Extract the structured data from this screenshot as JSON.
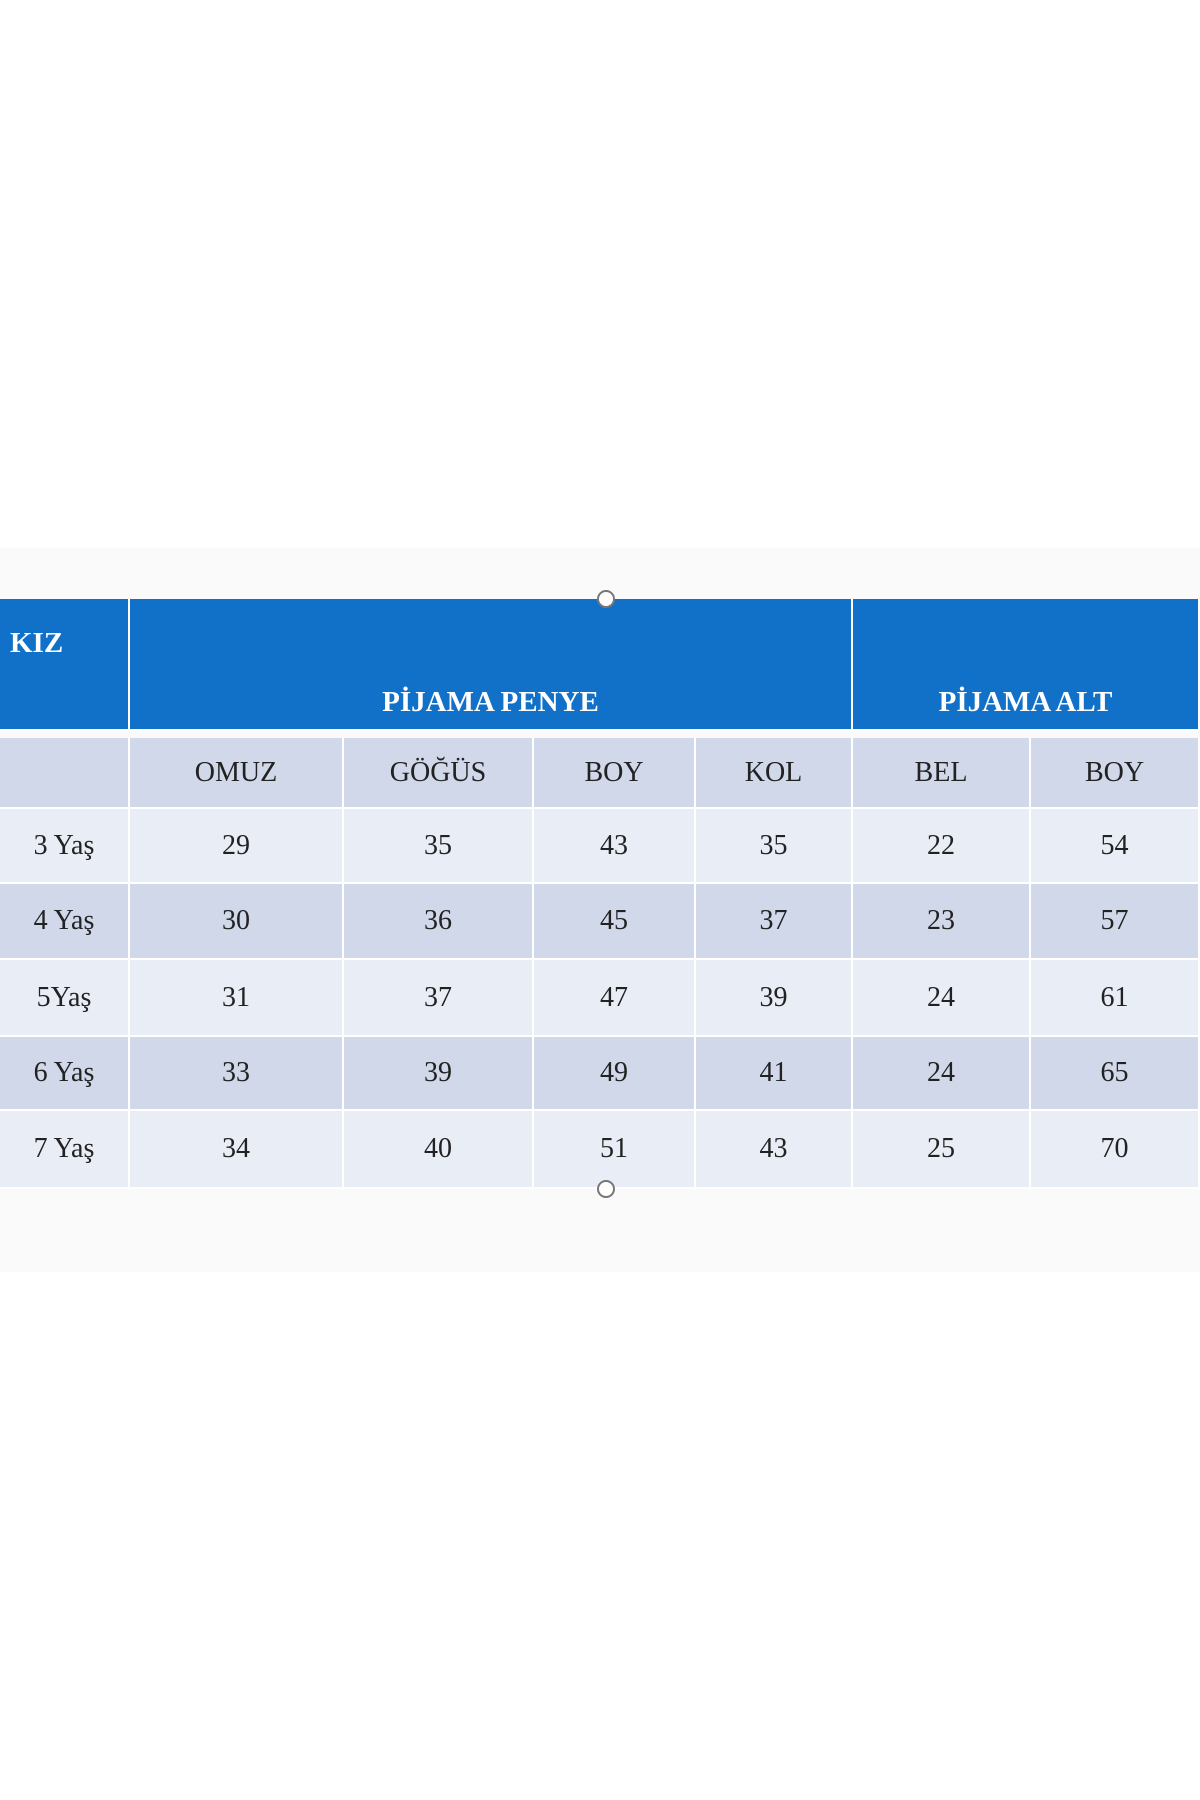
{
  "table": {
    "corner": "KIZ",
    "groups": [
      "PİJAMA PENYE",
      "PİJAMA ALT"
    ],
    "columns": [
      "OMUZ",
      "GÖĞÜS",
      "BOY",
      "KOL",
      "BEL",
      "BOY"
    ],
    "rows": [
      [
        "3 Yaş",
        29,
        35,
        43,
        35,
        22,
        54
      ],
      [
        "4 Yaş",
        30,
        36,
        45,
        37,
        23,
        57
      ],
      [
        "5Yaş",
        31,
        37,
        47,
        39,
        24,
        61
      ],
      [
        "6 Yaş",
        33,
        39,
        49,
        41,
        24,
        65
      ],
      [
        "7 Yaş",
        34,
        40,
        51,
        43,
        25,
        70
      ]
    ]
  }
}
